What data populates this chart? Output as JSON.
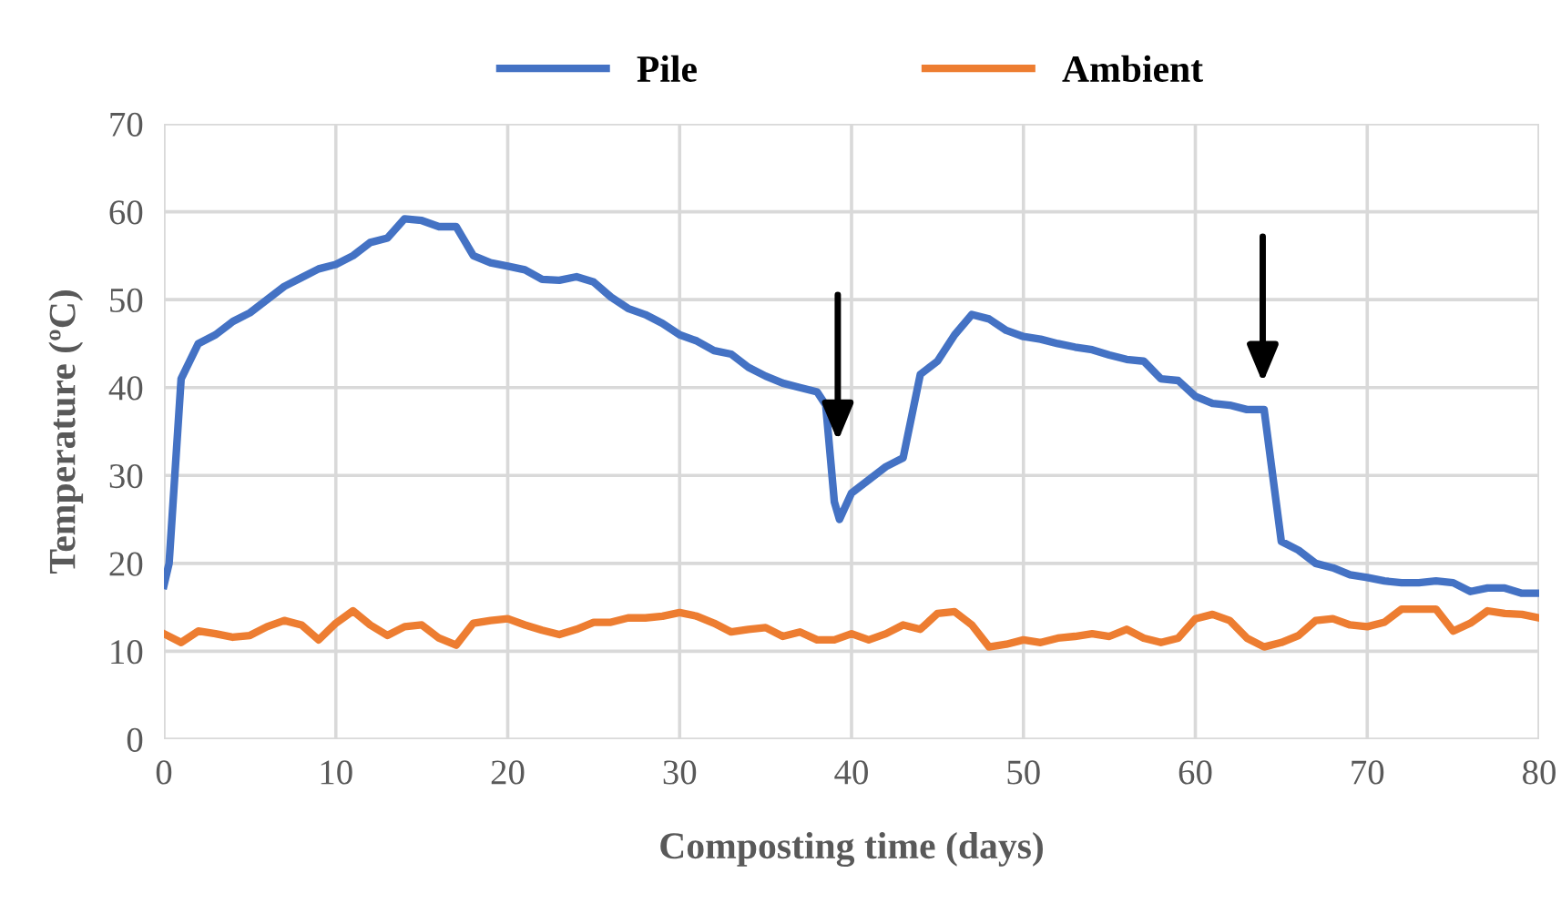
{
  "chart_data": {
    "type": "line",
    "xlabel": "Composting time (days)",
    "ylabel": "Temperature (ºC)",
    "xlim": [
      0,
      80
    ],
    "xticks": [
      0,
      10,
      20,
      30,
      40,
      50,
      60,
      70,
      80
    ],
    "ylim": [
      0,
      70
    ],
    "yticks": [
      0,
      10,
      20,
      30,
      40,
      50,
      60,
      70
    ],
    "grid": true,
    "legend": "top",
    "marker": "none",
    "line_style": "solid",
    "series": [
      {
        "name": "Pile",
        "color": "#4472c4",
        "x": [
          0,
          0.3,
          1,
          2,
          3,
          4,
          5,
          6,
          7,
          8,
          9,
          10,
          11,
          12,
          13,
          14,
          15,
          16,
          17,
          18,
          19,
          20,
          21,
          22,
          23,
          24,
          25,
          26,
          27,
          28,
          29,
          30,
          31,
          32,
          33,
          34,
          35,
          36,
          37,
          38,
          38.5,
          39,
          39.3,
          40,
          41,
          42,
          43,
          44,
          45,
          46,
          47,
          48,
          49,
          50,
          51,
          52,
          53,
          54,
          55,
          56,
          57,
          58,
          59,
          60,
          61,
          62,
          63,
          64,
          64.5,
          65,
          66,
          67,
          68,
          69,
          70,
          71,
          72,
          73,
          74,
          75,
          76,
          77,
          78,
          79,
          80
        ],
        "values": [
          17.5,
          20,
          41,
          45,
          46,
          47.5,
          48.5,
          50,
          51.5,
          52.5,
          53.5,
          54,
          55,
          56.5,
          57,
          59.2,
          59,
          58.3,
          58.3,
          55,
          54.2,
          53.8,
          53.4,
          52.3,
          52.2,
          52.6,
          52,
          50.3,
          49,
          48.3,
          47.3,
          46,
          45.3,
          44.2,
          43.8,
          42.3,
          41.3,
          40.5,
          40,
          39.5,
          38,
          27,
          25,
          28,
          29.5,
          31,
          32,
          41.5,
          43,
          46,
          48.3,
          47.8,
          46.5,
          45.8,
          45.5,
          45,
          44.6,
          44.3,
          43.7,
          43.2,
          43,
          41,
          40.8,
          39,
          38.2,
          38,
          37.5,
          37.5,
          30,
          22.5,
          21.5,
          20,
          19.5,
          18.7,
          18.4,
          18,
          17.8,
          17.8,
          18,
          17.8,
          16.8,
          17.2,
          17.2,
          16.6,
          16.6
        ]
      },
      {
        "name": "Ambient",
        "color": "#ed7d31",
        "x": [
          0,
          1,
          2,
          3,
          4,
          5,
          6,
          7,
          8,
          9,
          10,
          11,
          12,
          13,
          14,
          15,
          16,
          17,
          18,
          19,
          20,
          21,
          22,
          23,
          24,
          25,
          26,
          27,
          28,
          29,
          30,
          31,
          32,
          33,
          34,
          35,
          36,
          37,
          38,
          39,
          40,
          41,
          42,
          43,
          44,
          45,
          46,
          47,
          48,
          49,
          50,
          51,
          52,
          53,
          54,
          55,
          56,
          57,
          58,
          59,
          60,
          61,
          62,
          63,
          64,
          65,
          66,
          67,
          68,
          69,
          70,
          71,
          72,
          73,
          74,
          75,
          76,
          77,
          78,
          79,
          80
        ],
        "values": [
          12,
          11,
          12.3,
          12,
          11.6,
          11.8,
          12.8,
          13.5,
          13,
          11.3,
          13.2,
          14.6,
          13,
          11.8,
          12.8,
          13,
          11.5,
          10.7,
          13.2,
          13.5,
          13.7,
          13,
          12.4,
          11.9,
          12.5,
          13.3,
          13.3,
          13.8,
          13.8,
          14,
          14.4,
          14,
          13.2,
          12.2,
          12.5,
          12.7,
          11.7,
          12.2,
          11.3,
          11.3,
          12,
          11.3,
          12,
          13,
          12.5,
          14.3,
          14.5,
          13,
          10.5,
          10.8,
          11.3,
          11,
          11.5,
          11.7,
          12,
          11.7,
          12.5,
          11.5,
          11,
          11.5,
          13.7,
          14.2,
          13.5,
          11.5,
          10.5,
          11,
          11.8,
          13.5,
          13.7,
          13,
          12.8,
          13.3,
          14.8,
          14.8,
          14.8,
          12.3,
          13.2,
          14.6,
          14.3,
          14.2,
          13.8
        ]
      }
    ]
  }
}
